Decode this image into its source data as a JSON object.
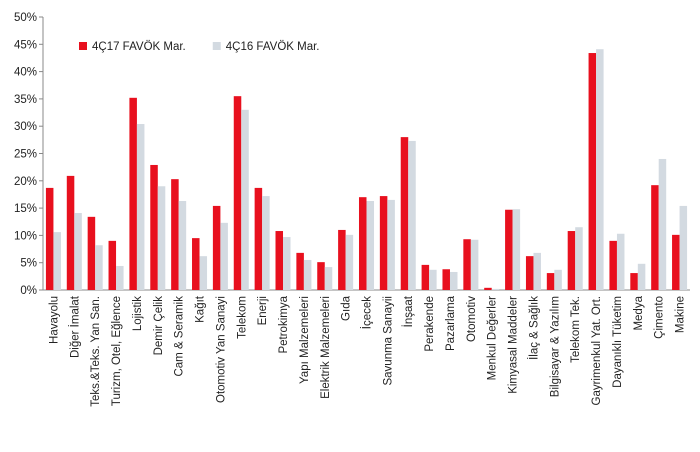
{
  "chart_data": {
    "type": "bar",
    "categories": [
      "Havayolu",
      "Diğer İmalat",
      "Teks.&Teks. Yan San.",
      "Turizm, Otel, Eğlence",
      "Lojistik",
      "Demir Çelik",
      "Cam & Seramik",
      "Kağıt",
      "Otomotiv Yan Sanayi",
      "Telekom",
      "Enerji",
      "Petrokimya",
      "Yapı Malzemeleri",
      "Elektrik Malzemeleri",
      "Gıda",
      "İçecek",
      "Savunma Sanayii",
      "İnşaat",
      "Perakende",
      "Pazarlama",
      "Otomotiv",
      "Menkul Değerler",
      "Kimyasal Maddeler",
      "İlaç & Sağlık",
      "Bilgisayar & Yazılım",
      "Telekom Tek.",
      "Gayrimenkul Yat. Ort.",
      "Dayanıklı Tüketim",
      "Medya",
      "Çimento",
      "Makine"
    ],
    "series": [
      {
        "name": "4Ç17 FAVÖK Mar.",
        "color": "#e8101e",
        "values": [
          18.7,
          20.9,
          13.4,
          9.0,
          35.2,
          22.9,
          20.3,
          9.5,
          15.4,
          35.5,
          18.7,
          10.8,
          6.8,
          5.1,
          11.0,
          17.0,
          17.2,
          28.0,
          4.6,
          3.8,
          9.3,
          0.4,
          14.7,
          6.2,
          3.1,
          10.8,
          43.4,
          9.0,
          3.1,
          19.2,
          10.1
        ]
      },
      {
        "name": "4Ç16 FAVÖK Mar.",
        "color": "#d3dae1",
        "values": [
          10.6,
          14.1,
          8.2,
          4.4,
          30.4,
          19.0,
          16.3,
          6.2,
          12.3,
          33.0,
          17.2,
          9.7,
          5.5,
          4.2,
          10.1,
          16.3,
          16.5,
          27.3,
          3.7,
          3.3,
          9.2,
          0.2,
          14.8,
          6.8,
          3.7,
          11.5,
          44.1,
          10.3,
          4.8,
          24.0,
          15.4
        ]
      }
    ],
    "ylim": [
      0,
      50
    ],
    "yticks": [
      {
        "value": 0,
        "label": "0%"
      },
      {
        "value": 5,
        "label": "5%"
      },
      {
        "value": 10,
        "label": "10%"
      },
      {
        "value": 15,
        "label": "15%"
      },
      {
        "value": 20,
        "label": "20%"
      },
      {
        "value": 25,
        "label": "25%"
      },
      {
        "value": 30,
        "label": "30%"
      },
      {
        "value": 35,
        "label": "35%"
      },
      {
        "value": 40,
        "label": "40%"
      },
      {
        "value": 45,
        "label": "45%"
      },
      {
        "value": 50,
        "label": "50%"
      }
    ],
    "legend": "top-left"
  }
}
